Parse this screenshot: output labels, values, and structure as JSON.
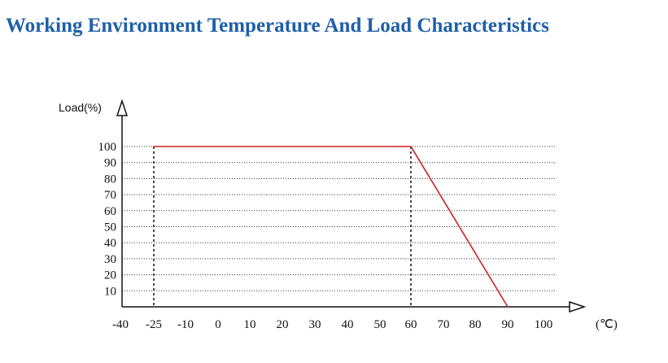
{
  "page": {
    "title": "Working Environment Temperature And Load Characteristics"
  },
  "colors": {
    "title": "#1f5fa8",
    "curve": "#cc2222",
    "axis": "#111111",
    "grid": "#333333"
  },
  "chart_data": {
    "type": "line",
    "title": "",
    "xlabel": "(℃)",
    "ylabel": "Load(%)",
    "x_ticks": [
      "-40",
      "-25",
      "-10",
      "0",
      "10",
      "20",
      "30",
      "40",
      "50",
      "60",
      "70",
      "80",
      "90",
      "100"
    ],
    "y_ticks": [
      "10",
      "20",
      "30",
      "40",
      "50",
      "60",
      "70",
      "80",
      "90",
      "100"
    ],
    "y_values": [
      10,
      20,
      30,
      40,
      50,
      60,
      70,
      80,
      90,
      100
    ],
    "ylim": [
      0,
      100
    ],
    "grid": "horizontal dotted",
    "series": [
      {
        "points": [
          {
            "x": -25,
            "y": 100
          },
          {
            "x": 60,
            "y": 100
          },
          {
            "x": 90,
            "y": 0
          }
        ]
      }
    ],
    "reference_lines": [
      {
        "x": -25
      },
      {
        "x": 60
      }
    ]
  }
}
